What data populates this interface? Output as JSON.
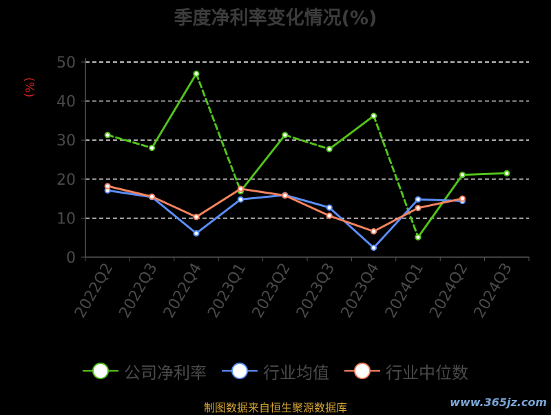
{
  "title": "季度净利率变化情况(%)",
  "footer": "制图数据来自恒生聚源数据库",
  "watermark": "www.365jz.com",
  "chart_data": {
    "type": "line",
    "title": "季度净利率变化情况(%)",
    "ylabel": "(%)",
    "categories": [
      "2022Q2",
      "2022Q3",
      "2022Q4",
      "2023Q1",
      "2023Q2",
      "2023Q3",
      "2023Q4",
      "2024Q1",
      "2024Q2",
      "2024Q3"
    ],
    "ylim": [
      0,
      50
    ],
    "yticks": [
      0,
      10,
      20,
      30,
      40,
      50
    ],
    "grid": true,
    "legend_position": "bottom",
    "series": [
      {
        "name": "公司净利率",
        "color": "#52c41a",
        "values": [
          31.3,
          28.0,
          47.0,
          16.9,
          31.3,
          27.7,
          36.2,
          5.1,
          21.1,
          21.5
        ]
      },
      {
        "name": "行业均值",
        "color": "#5b8ff9",
        "values": [
          17.1,
          15.4,
          6.1,
          14.8,
          15.9,
          12.7,
          2.4,
          14.8,
          14.4,
          null
        ]
      },
      {
        "name": "行业中位数",
        "color": "#f4845f",
        "values": [
          18.2,
          15.5,
          10.3,
          17.5,
          15.8,
          10.6,
          6.6,
          12.6,
          15.0,
          null
        ]
      }
    ]
  }
}
